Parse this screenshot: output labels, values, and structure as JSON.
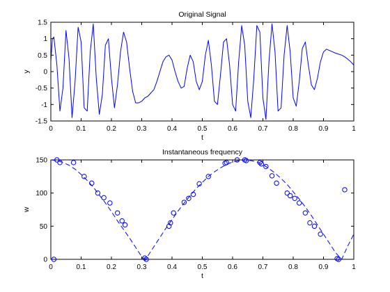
{
  "chart_data": [
    {
      "type": "line",
      "title": "Original Signal",
      "xlabel": "t",
      "ylabel": "y",
      "xlim": [
        0,
        1
      ],
      "ylim": [
        -1.5,
        1.5
      ],
      "xticks": [
        0,
        0.1,
        0.2,
        0.3,
        0.4,
        0.5,
        0.6,
        0.7,
        0.8,
        0.9,
        1
      ],
      "xtick_labels": [
        "0",
        "0.1",
        "0.2",
        "0.3",
        "0.4",
        "0.5",
        "0.6",
        "0.7",
        "0.8",
        "0.9",
        "1"
      ],
      "yticks": [
        -1.5,
        -1,
        -0.5,
        0,
        0.5,
        1,
        1.5
      ],
      "ytick_labels": [
        "-1.5",
        "-1",
        "-0.5",
        "0",
        "0.5",
        "1",
        "1.5"
      ],
      "grid": false,
      "series": [
        {
          "style": "solid",
          "color": "#0000ff",
          "x": [
            0,
            0.005,
            0.01,
            0.02,
            0.03,
            0.04,
            0.05,
            0.06,
            0.07,
            0.08,
            0.09,
            0.1,
            0.11,
            0.12,
            0.13,
            0.14,
            0.15,
            0.16,
            0.17,
            0.18,
            0.19,
            0.2,
            0.21,
            0.22,
            0.23,
            0.24,
            0.25,
            0.26,
            0.27,
            0.28,
            0.29,
            0.3,
            0.31,
            0.32,
            0.33,
            0.34,
            0.35,
            0.36,
            0.37,
            0.38,
            0.39,
            0.4,
            0.41,
            0.42,
            0.43,
            0.44,
            0.45,
            0.46,
            0.47,
            0.48,
            0.49,
            0.5,
            0.51,
            0.52,
            0.53,
            0.54,
            0.55,
            0.56,
            0.57,
            0.58,
            0.59,
            0.6,
            0.61,
            0.62,
            0.63,
            0.64,
            0.65,
            0.66,
            0.67,
            0.68,
            0.69,
            0.7,
            0.71,
            0.72,
            0.73,
            0.74,
            0.75,
            0.76,
            0.77,
            0.78,
            0.79,
            0.8,
            0.81,
            0.82,
            0.83,
            0.84,
            0.85,
            0.86,
            0.87,
            0.88,
            0.89,
            0.9,
            0.91,
            0.92,
            0.93,
            0.94,
            0.95,
            0.96,
            0.97,
            0.98,
            0.99,
            1
          ],
          "y": [
            0.3,
            1.0,
            1.05,
            0.2,
            -1.2,
            -0.5,
            1.25,
            0.4,
            -1.4,
            -0.3,
            1.35,
            0.9,
            -1.1,
            -1.2,
            0.6,
            1.45,
            -0.2,
            -1.3,
            -0.7,
            0.8,
            1.0,
            -0.2,
            -1.1,
            -0.4,
            0.6,
            1.2,
            0.9,
            0.1,
            -0.6,
            -0.95,
            -0.95,
            -0.9,
            -0.8,
            -0.75,
            -0.65,
            -0.55,
            -0.3,
            0.0,
            0.3,
            0.45,
            0.5,
            0.35,
            0.0,
            -0.3,
            -0.5,
            -0.45,
            0.1,
            0.5,
            0.3,
            -0.3,
            -0.55,
            -0.3,
            0.5,
            0.95,
            0.2,
            -0.9,
            -1.0,
            -0.1,
            0.9,
            1.0,
            0.2,
            -1.0,
            -1.2,
            0.3,
            1.4,
            0.8,
            -0.9,
            -1.4,
            -0.2,
            1.4,
            1.2,
            -0.8,
            -1.45,
            0.3,
            1.45,
            0.6,
            -1.2,
            -1.1,
            0.5,
            1.4,
            0.6,
            -0.8,
            -1.05,
            -0.3,
            0.7,
            0.9,
            0.2,
            -0.4,
            -0.55,
            -0.2,
            0.3,
            0.6,
            0.68,
            0.64,
            0.6,
            0.56,
            0.53,
            0.5,
            0.45,
            0.38,
            0.3,
            0.2
          ]
        }
      ]
    },
    {
      "type": "line",
      "title": "Instantaneous frequency",
      "xlabel": "t",
      "ylabel": "w",
      "xlim": [
        0,
        1
      ],
      "ylim": [
        0,
        150
      ],
      "xticks": [
        0,
        0.1,
        0.2,
        0.3,
        0.4,
        0.5,
        0.6,
        0.7,
        0.8,
        0.9,
        1
      ],
      "xtick_labels": [
        "0",
        "0.1",
        "0.2",
        "0.3",
        "0.4",
        "0.5",
        "0.6",
        "0.7",
        "0.8",
        "0.9",
        "1"
      ],
      "yticks": [
        0,
        50,
        100,
        150
      ],
      "ytick_labels": [
        "0",
        "50",
        "100",
        "150"
      ],
      "grid": false,
      "series": [
        {
          "style": "dashed",
          "color": "#0000ff",
          "x": [
            0,
            0.02,
            0.04,
            0.06,
            0.08,
            0.1,
            0.12,
            0.14,
            0.16,
            0.18,
            0.2,
            0.22,
            0.24,
            0.26,
            0.28,
            0.3,
            0.31,
            0.32,
            0.34,
            0.36,
            0.38,
            0.4,
            0.42,
            0.44,
            0.46,
            0.48,
            0.5,
            0.52,
            0.54,
            0.56,
            0.58,
            0.6,
            0.62,
            0.64,
            0.66,
            0.68,
            0.7,
            0.72,
            0.74,
            0.76,
            0.78,
            0.8,
            0.82,
            0.84,
            0.86,
            0.88,
            0.9,
            0.92,
            0.94,
            0.96,
            0.98,
            1
          ],
          "y": [
            150,
            149,
            146,
            142,
            136,
            128,
            119,
            109,
            97,
            85,
            72,
            58,
            45,
            32,
            18,
            4,
            0,
            5,
            19,
            33,
            47,
            60,
            73,
            85,
            96,
            107,
            116,
            125,
            132,
            138,
            143,
            147,
            149,
            150,
            149,
            147,
            143,
            137,
            130,
            122,
            113,
            102,
            91,
            79,
            66,
            52,
            38,
            24,
            10,
            0,
            20,
            38
          ]
        },
        {
          "style": "markers",
          "marker": "circle",
          "color": "#0000ff",
          "x": [
            0.01,
            0.02,
            0.03,
            0.075,
            0.11,
            0.135,
            0.155,
            0.175,
            0.195,
            0.22,
            0.235,
            0.245,
            0.31,
            0.315,
            0.39,
            0.395,
            0.405,
            0.44,
            0.455,
            0.47,
            0.49,
            0.52,
            0.575,
            0.58,
            0.615,
            0.64,
            0.645,
            0.69,
            0.695,
            0.71,
            0.73,
            0.745,
            0.78,
            0.79,
            0.805,
            0.82,
            0.84,
            0.855,
            0.87,
            0.89,
            0.945,
            0.95,
            0.97
          ],
          "y": [
            0,
            150,
            146,
            146,
            125,
            115,
            100,
            93,
            85,
            70,
            58,
            52,
            2,
            0,
            50,
            55,
            70,
            86,
            92,
            98,
            114,
            125,
            145,
            146,
            150,
            150,
            149,
            146,
            144,
            140,
            126,
            115,
            100,
            96,
            92,
            85,
            70,
            55,
            50,
            38,
            1,
            0,
            105
          ]
        }
      ]
    }
  ]
}
